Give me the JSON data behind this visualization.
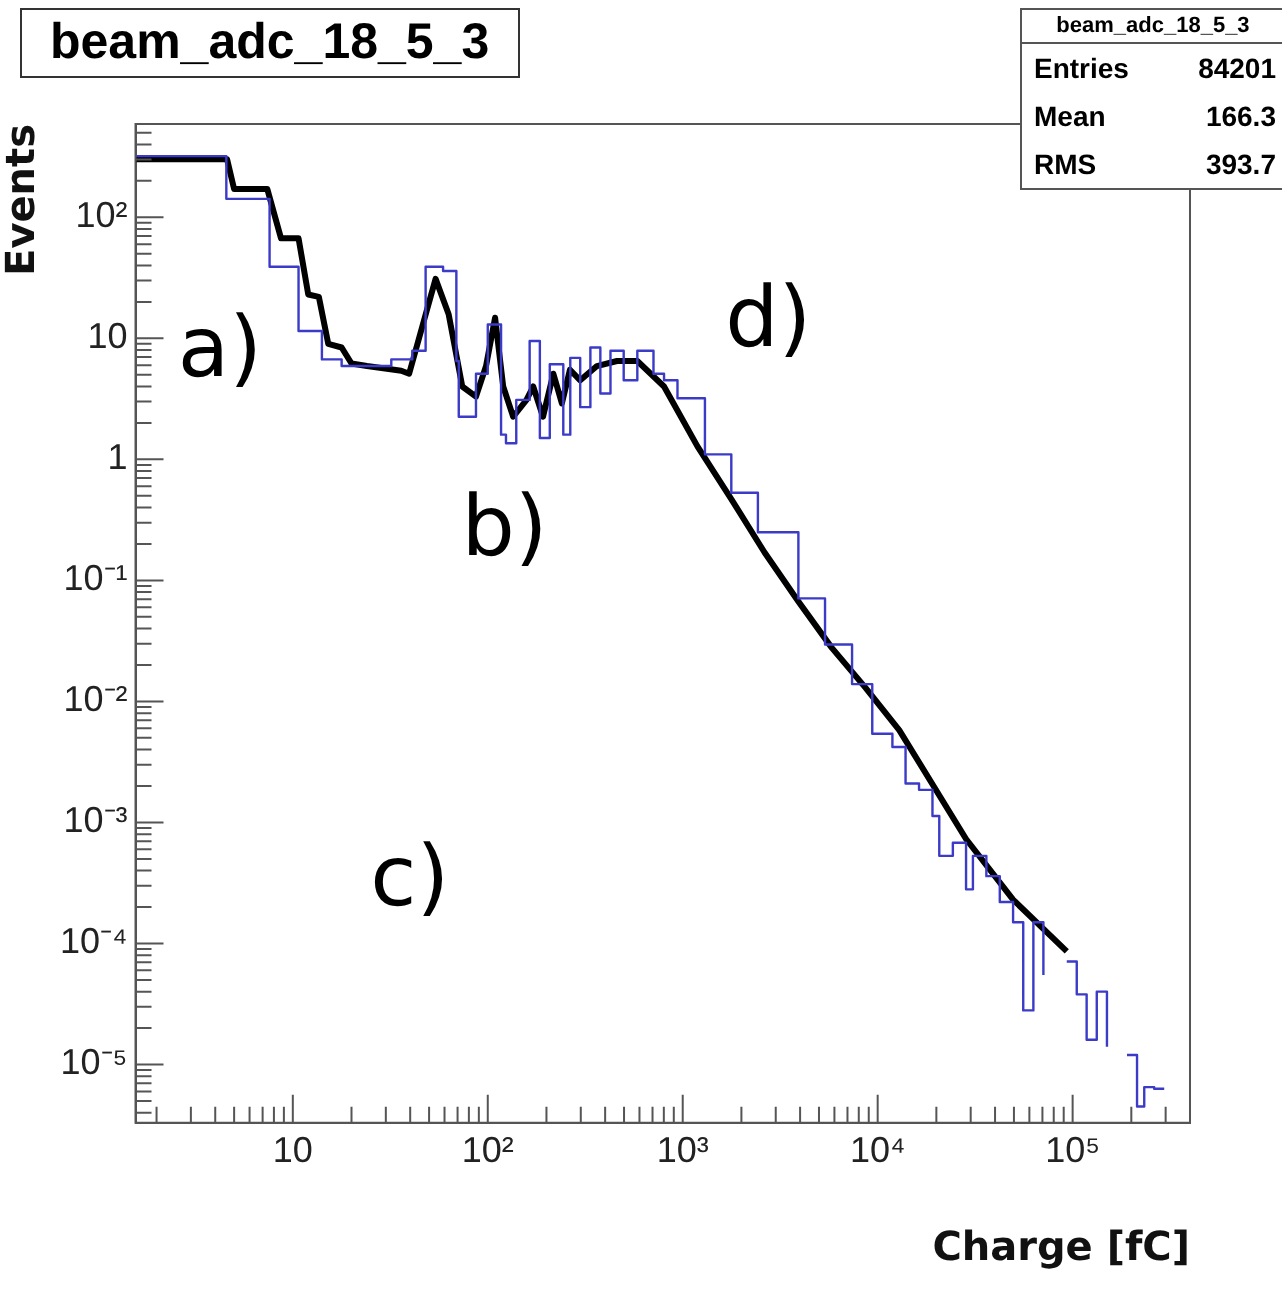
{
  "chart_data": {
    "type": "step",
    "title": "beam_adc_18_5_3",
    "xlabel": "Charge [fC]",
    "ylabel": "Events",
    "log": "xy",
    "grid": false,
    "legend": false,
    "xlim": [
      1.56,
      400000
    ],
    "ylim": [
      3.3e-06,
      590
    ],
    "xticks": [
      {
        "value": 2,
        "label": null
      },
      {
        "value": 3,
        "label": null
      },
      {
        "value": 4,
        "label": null
      },
      {
        "value": 5,
        "label": null
      },
      {
        "value": 6,
        "label": null
      },
      {
        "value": 7,
        "label": null
      },
      {
        "value": 8,
        "label": null
      },
      {
        "value": 9,
        "label": null
      },
      10,
      {
        "value": 20,
        "label": null
      },
      {
        "value": 30,
        "label": null
      },
      {
        "value": 40,
        "label": null
      },
      {
        "value": 50,
        "label": null
      },
      {
        "value": 60,
        "label": null
      },
      {
        "value": 70,
        "label": null
      },
      {
        "value": 80,
        "label": null
      },
      {
        "value": 90,
        "label": null
      },
      {
        "value": 100,
        "label": "10²"
      },
      {
        "value": 200,
        "label": null
      },
      {
        "value": 300,
        "label": null
      },
      {
        "value": 400,
        "label": null
      },
      {
        "value": 500,
        "label": null
      },
      {
        "value": 600,
        "label": null
      },
      {
        "value": 700,
        "label": null
      },
      {
        "value": 800,
        "label": null
      },
      {
        "value": 900,
        "label": null
      },
      {
        "value": 1000,
        "label": "10³"
      },
      {
        "value": 2000,
        "label": null
      },
      {
        "value": 3000,
        "label": null
      },
      {
        "value": 4000,
        "label": null
      },
      {
        "value": 5000,
        "label": null
      },
      {
        "value": 6000,
        "label": null
      },
      {
        "value": 7000,
        "label": null
      },
      {
        "value": 8000,
        "label": null
      },
      {
        "value": 9000,
        "label": null
      },
      {
        "value": 10000,
        "label": "10⁴"
      },
      {
        "value": 20000,
        "label": null
      },
      {
        "value": 30000,
        "label": null
      },
      {
        "value": 40000,
        "label": null
      },
      {
        "value": 50000,
        "label": null
      },
      {
        "value": 60000,
        "label": null
      },
      {
        "value": 70000,
        "label": null
      },
      {
        "value": 80000,
        "label": null
      },
      {
        "value": 90000,
        "label": null
      },
      {
        "value": 100000,
        "label": "10⁵"
      },
      {
        "value": 200000,
        "label": null
      },
      {
        "value": 300000,
        "label": null
      }
    ],
    "yticks": [
      {
        "value": 4e-06,
        "label": null
      },
      {
        "value": 5e-06,
        "label": null
      },
      {
        "value": 6e-06,
        "label": null
      },
      {
        "value": 7e-06,
        "label": null
      },
      {
        "value": 8e-06,
        "label": null
      },
      {
        "value": 9e-06,
        "label": null
      },
      {
        "value": 1e-05,
        "label": "10⁻⁵"
      },
      {
        "value": 2e-05,
        "label": null
      },
      {
        "value": 3e-05,
        "label": null
      },
      {
        "value": 4e-05,
        "label": null
      },
      {
        "value": 5e-05,
        "label": null
      },
      {
        "value": 6e-05,
        "label": null
      },
      {
        "value": 7e-05,
        "label": null
      },
      {
        "value": 8e-05,
        "label": null
      },
      {
        "value": 9e-05,
        "label": null
      },
      {
        "value": 0.0001,
        "label": "10⁻⁴"
      },
      {
        "value": 0.0002,
        "label": null
      },
      {
        "value": 0.0003,
        "label": null
      },
      {
        "value": 0.0004,
        "label": null
      },
      {
        "value": 0.0005,
        "label": null
      },
      {
        "value": 0.0006,
        "label": null
      },
      {
        "value": 0.0007,
        "label": null
      },
      {
        "value": 0.0008,
        "label": null
      },
      {
        "value": 0.0009,
        "label": null
      },
      {
        "value": 0.001,
        "label": "10⁻³"
      },
      {
        "value": 0.002,
        "label": null
      },
      {
        "value": 0.003,
        "label": null
      },
      {
        "value": 0.004,
        "label": null
      },
      {
        "value": 0.005,
        "label": null
      },
      {
        "value": 0.006,
        "label": null
      },
      {
        "value": 0.007,
        "label": null
      },
      {
        "value": 0.008,
        "label": null
      },
      {
        "value": 0.009,
        "label": null
      },
      {
        "value": 0.01,
        "label": "10⁻²"
      },
      {
        "value": 0.02,
        "label": null
      },
      {
        "value": 0.03,
        "label": null
      },
      {
        "value": 0.04,
        "label": null
      },
      {
        "value": 0.05,
        "label": null
      },
      {
        "value": 0.06,
        "label": null
      },
      {
        "value": 0.07,
        "label": null
      },
      {
        "value": 0.08,
        "label": null
      },
      {
        "value": 0.09,
        "label": null
      },
      {
        "value": 0.1,
        "label": "10⁻¹"
      },
      {
        "value": 0.2,
        "label": null
      },
      {
        "value": 0.3,
        "label": null
      },
      {
        "value": 0.4,
        "label": null
      },
      {
        "value": 0.5,
        "label": null
      },
      {
        "value": 0.6,
        "label": null
      },
      {
        "value": 0.7,
        "label": null
      },
      {
        "value": 0.8,
        "label": null
      },
      {
        "value": 0.9,
        "label": null
      },
      1,
      {
        "value": 2,
        "label": null
      },
      {
        "value": 3,
        "label": null
      },
      {
        "value": 4,
        "label": null
      },
      {
        "value": 5,
        "label": null
      },
      {
        "value": 6,
        "label": null
      },
      {
        "value": 7,
        "label": null
      },
      {
        "value": 8,
        "label": null
      },
      {
        "value": 9,
        "label": null
      },
      10,
      {
        "value": 20,
        "label": null
      },
      {
        "value": 30,
        "label": null
      },
      {
        "value": 40,
        "label": null
      },
      {
        "value": 50,
        "label": null
      },
      {
        "value": 60,
        "label": null
      },
      {
        "value": 70,
        "label": null
      },
      {
        "value": 80,
        "label": null
      },
      {
        "value": 90,
        "label": null
      },
      {
        "value": 100,
        "label": "10²"
      },
      {
        "value": 200,
        "label": null
      },
      {
        "value": 300,
        "label": null
      },
      {
        "value": 400,
        "label": null
      },
      {
        "value": 500,
        "label": null
      }
    ],
    "series": [
      {
        "color": "#3b3bc8",
        "x": [
          1.56,
          4.56,
          7.6,
          10.7,
          14.1,
          17.8,
          32,
          41,
          48,
          59,
          69,
          71,
          87,
          100,
          117,
          124,
          140,
          164,
          185,
          208,
          244,
          265,
          298,
          336,
          378,
          426,
          498,
          585,
          708,
          802,
          940,
          1300,
          1775,
          2430,
          3920,
          5370,
          7390,
          9380,
          11900,
          13900,
          16300,
          19100,
          20700,
          24300,
          28400,
          30800,
          36100,
          42300,
          49500,
          55800,
          62900,
          70800,
          79500,
          93300,
          105000,
          118000,
          133000,
          150000,
          169000,
          190000,
          214000,
          233000,
          262000,
          295000
        ],
        "values": [
          320,
          142,
          39,
          11.5,
          6.7,
          5.9,
          6.7,
          7.9,
          39,
          36,
          6.5,
          2.25,
          5.1,
          13,
          1.6,
          1.36,
          3.1,
          9.5,
          1.5,
          6.1,
          1.6,
          6.9,
          2.7,
          8.4,
          3.5,
          7.9,
          4.5,
          7.9,
          5.1,
          4.5,
          3.2,
          1.1,
          0.53,
          0.25,
          0.071,
          0.0295,
          0.0139,
          0.0054,
          0.0042,
          0.0021,
          0.00186,
          0.00113,
          0.00053,
          0.00068,
          0.00028,
          0.00053,
          0.00036,
          0.00022,
          0.00015,
          2.8e-05,
          0.00015,
          5.5e-05,
          null,
          7.1e-05,
          3.8e-05,
          1.6e-05,
          4e-05,
          1.4e-05,
          null,
          1.2e-05,
          4.5e-06,
          6.5e-06,
          6.3e-06,
          6.3e-06
        ]
      },
      {
        "type": "line",
        "color": "#000000",
        "x": [
          1.56,
          4.6,
          5.0,
          7.4,
          8.7,
          10.7,
          12.0,
          13.6,
          15.2,
          17.8,
          20,
          24,
          36,
          39.5,
          46,
          54,
          63,
          74,
          87,
          98,
          109,
          120,
          135,
          158,
          171,
          192,
          217,
          240,
          264,
          298,
          363,
          460,
          585,
          802,
          1190,
          1775,
          2630,
          3920,
          5820,
          8650,
          12900,
          28400,
          49500,
          93300
        ],
        "values": [
          302,
          302,
          171,
          171,
          67,
          67,
          23,
          22,
          9.0,
          8.4,
          6.2,
          5.9,
          5.4,
          5.1,
          12.3,
          31,
          15.8,
          4.0,
          3.3,
          5.9,
          14.8,
          4.0,
          2.25,
          3.1,
          4.0,
          2.25,
          5.1,
          2.9,
          5.5,
          4.5,
          5.9,
          6.5,
          6.5,
          4.0,
          1.28,
          0.47,
          0.17,
          0.067,
          0.0277,
          0.013,
          0.0058,
          0.00073,
          0.00023,
          8.6e-05
        ]
      }
    ],
    "annotations": [
      "beam_adc_18_5_3",
      "Entries 84201",
      "Mean 166.3",
      "RMS 393.7",
      "a)",
      "b)",
      "c)",
      "d)"
    ]
  }
}
